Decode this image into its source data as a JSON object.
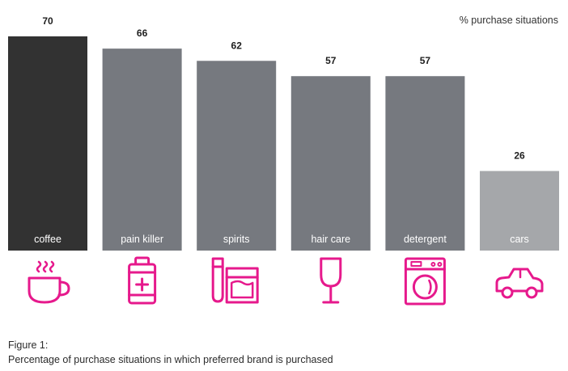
{
  "chart_data": {
    "type": "bar",
    "categories": [
      "coffee",
      "pain killer",
      "spirits",
      "hair care",
      "detergent",
      "cars"
    ],
    "values": [
      70,
      66,
      62,
      57,
      57,
      26
    ],
    "unit_label": "% purchase situations",
    "ylim": [
      0,
      70
    ],
    "grid": false,
    "legend": "none",
    "bar_colors": [
      "#323232",
      "#76797f",
      "#76797f",
      "#76797f",
      "#76797f",
      "#a5a7aa"
    ],
    "icons": [
      "coffee-cup-icon",
      "medicine-bottle-icon",
      "spirits-bottle-glass-icon",
      "wine-glass-icon",
      "washing-machine-icon",
      "car-icon"
    ],
    "icon_color": "#e6198c"
  },
  "caption": {
    "line1": "Figure 1:",
    "line2": "Percentage of purchase situations in which preferred brand is purchased"
  }
}
